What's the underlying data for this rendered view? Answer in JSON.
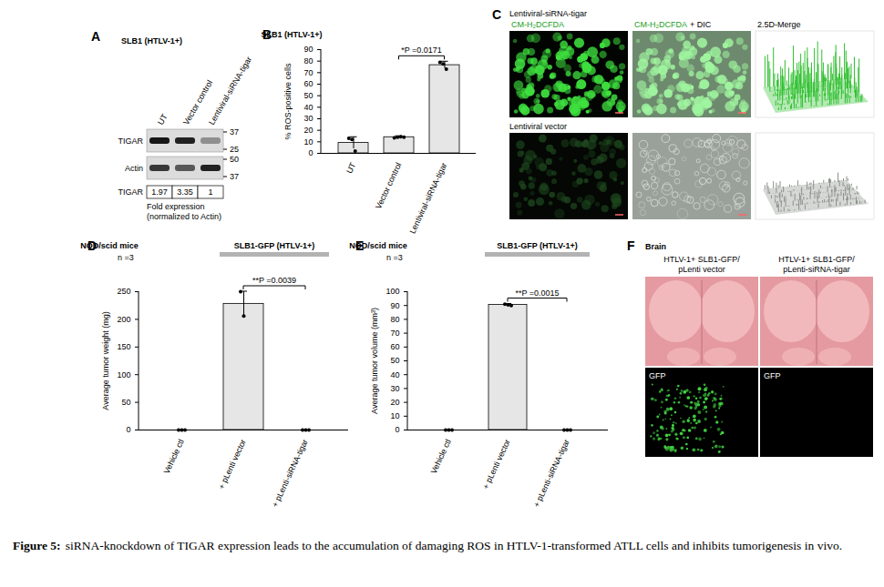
{
  "chart_data": [
    {
      "panel": "B",
      "type": "bar",
      "title": "SLB1 (HTLV-1+)",
      "categories": [
        "UT",
        "Vector control",
        "Lentiviral-siRNA-tigar"
      ],
      "values": [
        9,
        14,
        76.5
      ],
      "errors": [
        5,
        0.8,
        3
      ],
      "points": [
        [
          13,
          12,
          2
        ],
        [
          13.5,
          14,
          14.5,
          14
        ],
        [
          79,
          77.5,
          73
        ]
      ],
      "ylabel": "% ROS-positive cells",
      "ylim": [
        0,
        90
      ],
      "yticks": [
        0,
        10,
        20,
        30,
        40,
        50,
        60,
        70,
        80,
        90
      ],
      "color": "#e6e6e6",
      "annotations": [
        {
          "text": "*P =0.0171",
          "between": [
            "Vector control",
            "Lentiviral-siRNA-tigar"
          ]
        }
      ]
    },
    {
      "panel": "D",
      "type": "bar",
      "title": "NOD/scid mice",
      "subtitle": "n =3",
      "group_label": "SLB1-GFP (HTLV-1+)",
      "group": [
        "+ pLenti vector",
        "+ pLenti-siRNA-tigar"
      ],
      "categories": [
        "Vehicle ctl",
        "+ pLenti vector",
        "+ pLenti-siRNA-tigar"
      ],
      "values": [
        0,
        228,
        0
      ],
      "errors": [
        0,
        22,
        0
      ],
      "points": [
        [
          0,
          0,
          0
        ],
        [
          250,
          206
        ],
        [
          0,
          0,
          0
        ]
      ],
      "ylabel": "Average tumor weight (mg)",
      "ylim": [
        0,
        250
      ],
      "yticks": [
        0,
        50,
        100,
        150,
        200,
        250
      ],
      "color": "#e6e6e6",
      "annotations": [
        {
          "text": "**P =0.0039",
          "between": [
            "+ pLenti vector",
            "+ pLenti-siRNA-tigar"
          ]
        }
      ]
    },
    {
      "panel": "E",
      "type": "bar",
      "title": "NOD/scid mice",
      "subtitle": "n =3",
      "group_label": "SLB1-GFP (HTLV-1+)",
      "group": [
        "+ pLenti vector",
        "+ pLenti-siRNA-tigar"
      ],
      "categories": [
        "Vehicle ctl",
        "+ pLenti vector",
        "+ pLenti-siRNA-tigar"
      ],
      "values": [
        0,
        90.5,
        0
      ],
      "errors": [
        0,
        0.6,
        0
      ],
      "points": [
        [
          0,
          0,
          0
        ],
        [
          91,
          90.5,
          90
        ],
        [
          0,
          0,
          0
        ]
      ],
      "ylabel": "Average tumor volume (mm³)",
      "ylim": [
        0,
        100
      ],
      "yticks": [
        0,
        10,
        20,
        30,
        40,
        50,
        60,
        70,
        80,
        90,
        100
      ],
      "color": "#e6e6e6",
      "annotations": [
        {
          "text": "**P =0.0015",
          "between": [
            "+ pLenti vector",
            "+ pLenti-siRNA-tigar"
          ]
        }
      ]
    }
  ],
  "panel_a": {
    "panel": "A",
    "title": "SLB1 (HTLV-1+)",
    "lanes": [
      "UT",
      "Vector control",
      "Lentiviral-siRNA-tigar"
    ],
    "blots": [
      {
        "label": "TIGAR",
        "markers": [
          37,
          25
        ]
      },
      {
        "label": "Actin",
        "markers": [
          50,
          37
        ]
      }
    ],
    "fold": {
      "label": "TIGAR",
      "values": [
        1.97,
        3.35,
        1
      ],
      "note": [
        "Fold expression",
        "(normalized to Actin)"
      ]
    }
  },
  "panel_c": {
    "panel": "C",
    "rows": [
      "Lentiviral-siRNA-tigar",
      "Lentiviral vector"
    ],
    "headers": [
      [
        {
          "text": "CM-H₂DCFDA",
          "color": "#22a022"
        }
      ],
      [
        {
          "text": "CM-H₂DCFDA",
          "color": "#22a022"
        },
        {
          "text": "+ DIC",
          "color": "#000000"
        }
      ],
      [
        {
          "text": "2.5D-Merge",
          "color": "#000000"
        }
      ]
    ]
  },
  "panel_f": {
    "panel": "F",
    "title": "Brain",
    "columns": [
      [
        "HTLV-1+ SLB1-GFP/",
        "pLenti vector"
      ],
      [
        "HTLV-1+ SLB1-GFP/",
        "pLenti-siRNA-tigar"
      ]
    ],
    "image_label": "GFP"
  },
  "caption": {
    "label": "Figure 5:",
    "text": "siRNA-knockdown of TIGAR expression leads to the accumulation of damaging ROS in HTLV-1-transformed ATLL cells and inhibits tumorigenesis in vivo."
  }
}
